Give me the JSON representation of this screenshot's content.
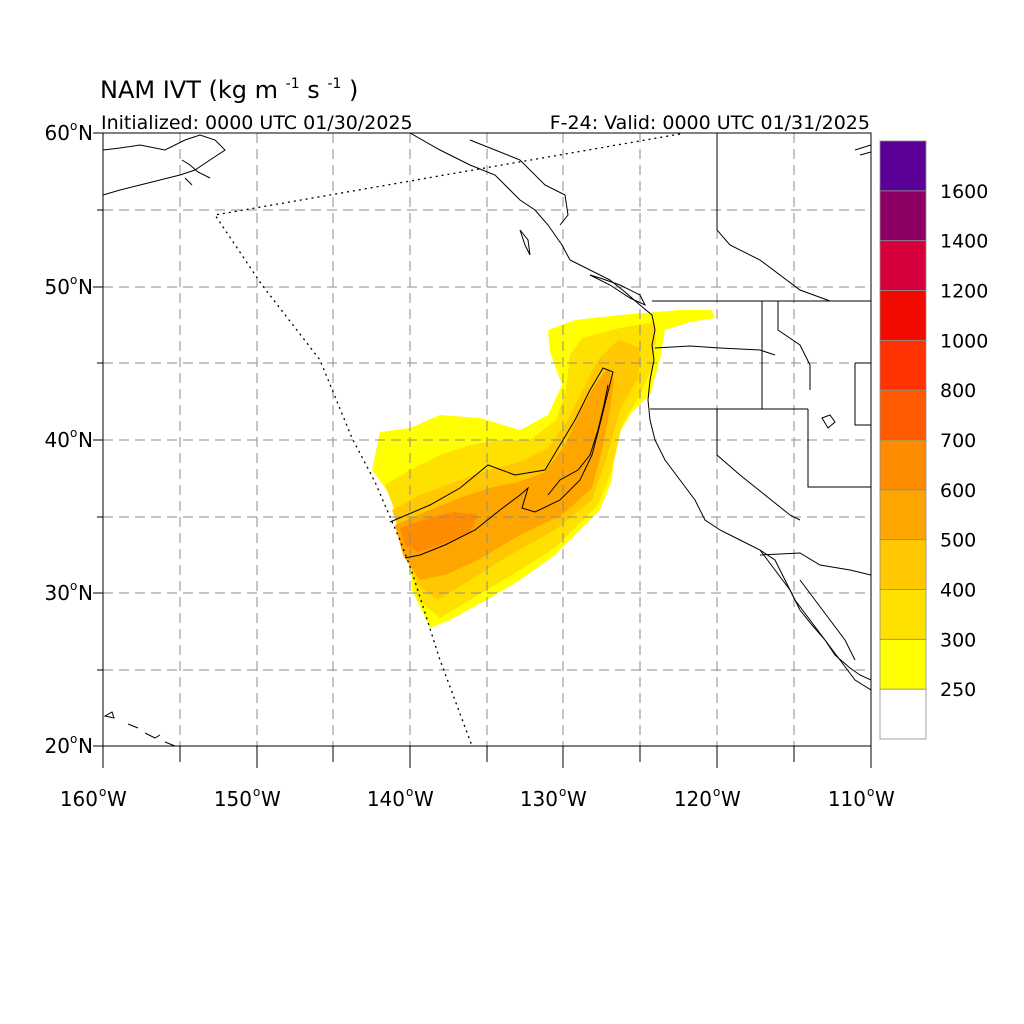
{
  "title": {
    "product": "NAM IVT",
    "units_open": "(kg m",
    "units_exp1": "-1",
    "units_mid": "s",
    "units_exp2": "-1",
    "units_close": ")"
  },
  "initialized_text": "Initialized: 0000 UTC 01/30/2025",
  "valid_text": "F-24: Valid: 0000 UTC 01/31/2025",
  "lat_labels": [
    {
      "num": "60",
      "hemi": "N",
      "value": 60
    },
    {
      "num": "50",
      "hemi": "N",
      "value": 50
    },
    {
      "num": "40",
      "hemi": "N",
      "value": 40
    },
    {
      "num": "30",
      "hemi": "N",
      "value": 30
    },
    {
      "num": "20",
      "hemi": "N",
      "value": 20
    }
  ],
  "lon_labels": [
    {
      "num": "160",
      "hemi": "W",
      "value": -160
    },
    {
      "num": "150",
      "hemi": "W",
      "value": -150
    },
    {
      "num": "140",
      "hemi": "W",
      "value": -140
    },
    {
      "num": "130",
      "hemi": "W",
      "value": -130
    },
    {
      "num": "120",
      "hemi": "W",
      "value": -120
    },
    {
      "num": "110",
      "hemi": "W",
      "value": -110
    }
  ],
  "colorbar": {
    "levels": [
      {
        "label": "",
        "color": "#ffffff"
      },
      {
        "label": "250",
        "color": "#ffff00"
      },
      {
        "label": "300",
        "color": "#ffe100"
      },
      {
        "label": "400",
        "color": "#ffc800"
      },
      {
        "label": "500",
        "color": "#ffa500"
      },
      {
        "label": "600",
        "color": "#ff8c00"
      },
      {
        "label": "700",
        "color": "#ff5a00"
      },
      {
        "label": "800",
        "color": "#ff3200"
      },
      {
        "label": "1000",
        "color": "#f00a00"
      },
      {
        "label": "1200",
        "color": "#d7003c"
      },
      {
        "label": "1400",
        "color": "#8c0064"
      },
      {
        "label": "1600",
        "color": "#5a0096"
      }
    ]
  },
  "colors": {
    "ivt_250": "#ffff00",
    "ivt_300": "#ffe100",
    "ivt_400": "#ffc800",
    "ivt_500": "#ffa500",
    "ivt_600": "#ff8c00",
    "grid": "#8c8c8c",
    "coast": "#000000"
  }
}
